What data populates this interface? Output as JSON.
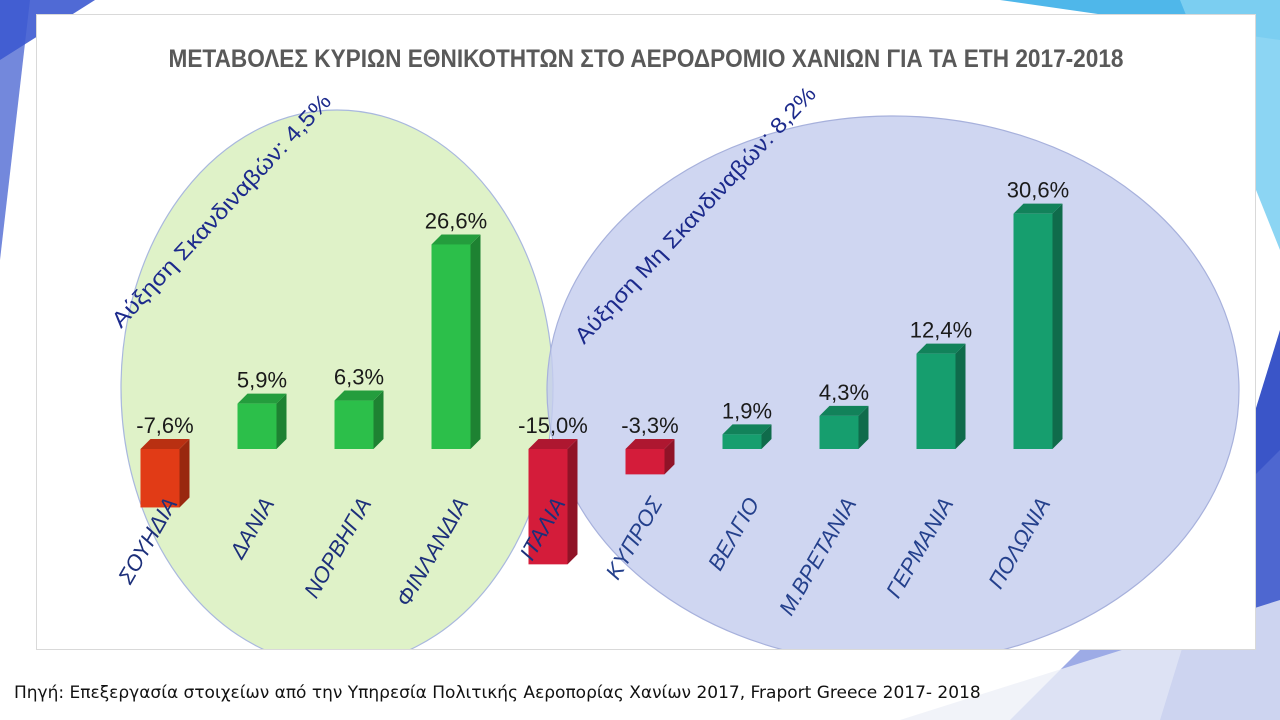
{
  "slide": {
    "source_note": "Πηγή: Επεξεργασία στοιχείων από την Υπηρεσία Πολιτικής Αεροπορίας Χανίων 2017, Fraport Greece 2017- 2018"
  },
  "chart_data": {
    "type": "bar",
    "title": "ΜΕΤΑΒΟΛΕΣ ΚΥΡΙΩΝ ΕΘΝΙΚΟΤΗΤΩΝ ΣΤΟ ΑΕΡΟΔΡΟΜΙΟ ΧΑΝΙΩΝ ΓΙΑ ΤΑ ΕΤΗ 2017-2018",
    "xlabel": "",
    "ylabel": "",
    "categories": [
      "ΣΟΥΗΔΙΑ",
      "ΔΑΝΙΑ",
      "ΝΟΡΒΗΓΙΑ",
      "ΦΙΝΛΑΝΔΙΑ",
      "ΙΤΑΛΙΑ",
      "ΚΥΠΡΟΣ",
      "ΒΕΛΓΙΟ",
      "Μ.ΒΡΕΤΑΝΙΑ",
      "ΓΕΡΜΑΝΙΑ",
      "ΠΟΛΩΝΙΑ"
    ],
    "values": [
      -7.6,
      5.9,
      6.3,
      26.6,
      -15.0,
      -3.3,
      1.9,
      4.3,
      12.4,
      30.6
    ],
    "data_labels": [
      "-7,6%",
      "5,9%",
      "6,3%",
      "26,6%",
      "-15,0%",
      "-3,3%",
      "1,9%",
      "4,3%",
      "12,4%",
      "30,6%"
    ],
    "colors": [
      "#e13b16",
      "#2cbf4a",
      "#2cbf4a",
      "#2cbf4a",
      "#d41c3a",
      "#d41c3a",
      "#169e6e",
      "#169e6e",
      "#169e6e",
      "#169e6e"
    ],
    "ylim": [
      -15.0,
      30.6
    ],
    "grid": false,
    "legend": "none",
    "annotations": [
      {
        "text": "Αύξηση Σκανδιναβών: 4,5%",
        "group": "scandinavian"
      },
      {
        "text": "Αύξηση Μη Σκανδιναβών: 8,2%",
        "group": "non-scandinavian"
      }
    ],
    "group_colors": {
      "scandinavian": "#dff2c8",
      "non_scandinavian": "#c5cdee"
    }
  }
}
